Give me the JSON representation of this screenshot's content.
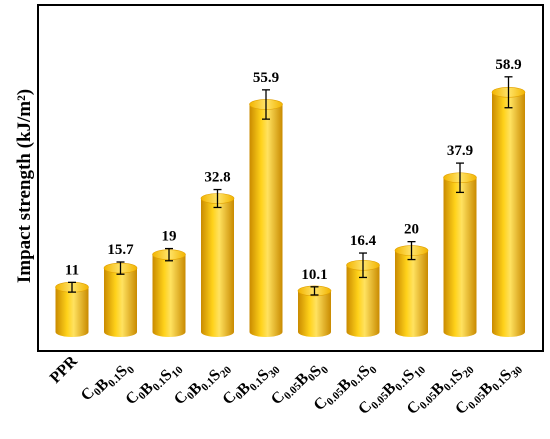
{
  "chart_data": {
    "type": "bar",
    "style": "3d-cylinder",
    "bar_color": "#F5B800",
    "title": "",
    "xlabel": "",
    "ylabel": "Impact strength (kJ/m²)",
    "ylim": [
      0,
      65
    ],
    "grid": false,
    "legend": "none",
    "categories": [
      {
        "main": "PPR",
        "parts": []
      },
      {
        "main": "",
        "parts": [
          [
            "C",
            "0"
          ],
          [
            "B",
            "0.1"
          ],
          [
            "S",
            "0"
          ]
        ]
      },
      {
        "main": "",
        "parts": [
          [
            "C",
            "0"
          ],
          [
            "B",
            "0.1"
          ],
          [
            "S",
            "10"
          ]
        ]
      },
      {
        "main": "",
        "parts": [
          [
            "C",
            "0"
          ],
          [
            "B",
            "0.1"
          ],
          [
            "S",
            "20"
          ]
        ]
      },
      {
        "main": "",
        "parts": [
          [
            "C",
            "0"
          ],
          [
            "B",
            "0.1"
          ],
          [
            "S",
            "30"
          ]
        ]
      },
      {
        "main": "",
        "parts": [
          [
            "C",
            "0.05"
          ],
          [
            "B",
            "0"
          ],
          [
            "S",
            "0"
          ]
        ]
      },
      {
        "main": "",
        "parts": [
          [
            "C",
            "0.05"
          ],
          [
            "B",
            "0.1"
          ],
          [
            "S",
            "0"
          ]
        ]
      },
      {
        "main": "",
        "parts": [
          [
            "C",
            "0.05"
          ],
          [
            "B",
            "0.1"
          ],
          [
            "S",
            "10"
          ]
        ]
      },
      {
        "main": "",
        "parts": [
          [
            "C",
            "0.05"
          ],
          [
            "B",
            "0.1"
          ],
          [
            "S",
            "20"
          ]
        ]
      },
      {
        "main": "",
        "parts": [
          [
            "C",
            "0.05"
          ],
          [
            "B",
            "0.1"
          ],
          [
            "S",
            "30"
          ]
        ]
      }
    ],
    "values": [
      11,
      15.7,
      19,
      32.8,
      55.9,
      10.1,
      16.4,
      20,
      37.9,
      58.9
    ],
    "value_labels": [
      "11",
      "15.7",
      "19",
      "32.8",
      "55.9",
      "10.1",
      "16.4",
      "20",
      "37.9",
      "58.9"
    ],
    "errors": [
      1.2,
      1.5,
      1.5,
      2.2,
      3.6,
      1.0,
      3.0,
      2.2,
      3.6,
      3.8
    ]
  }
}
